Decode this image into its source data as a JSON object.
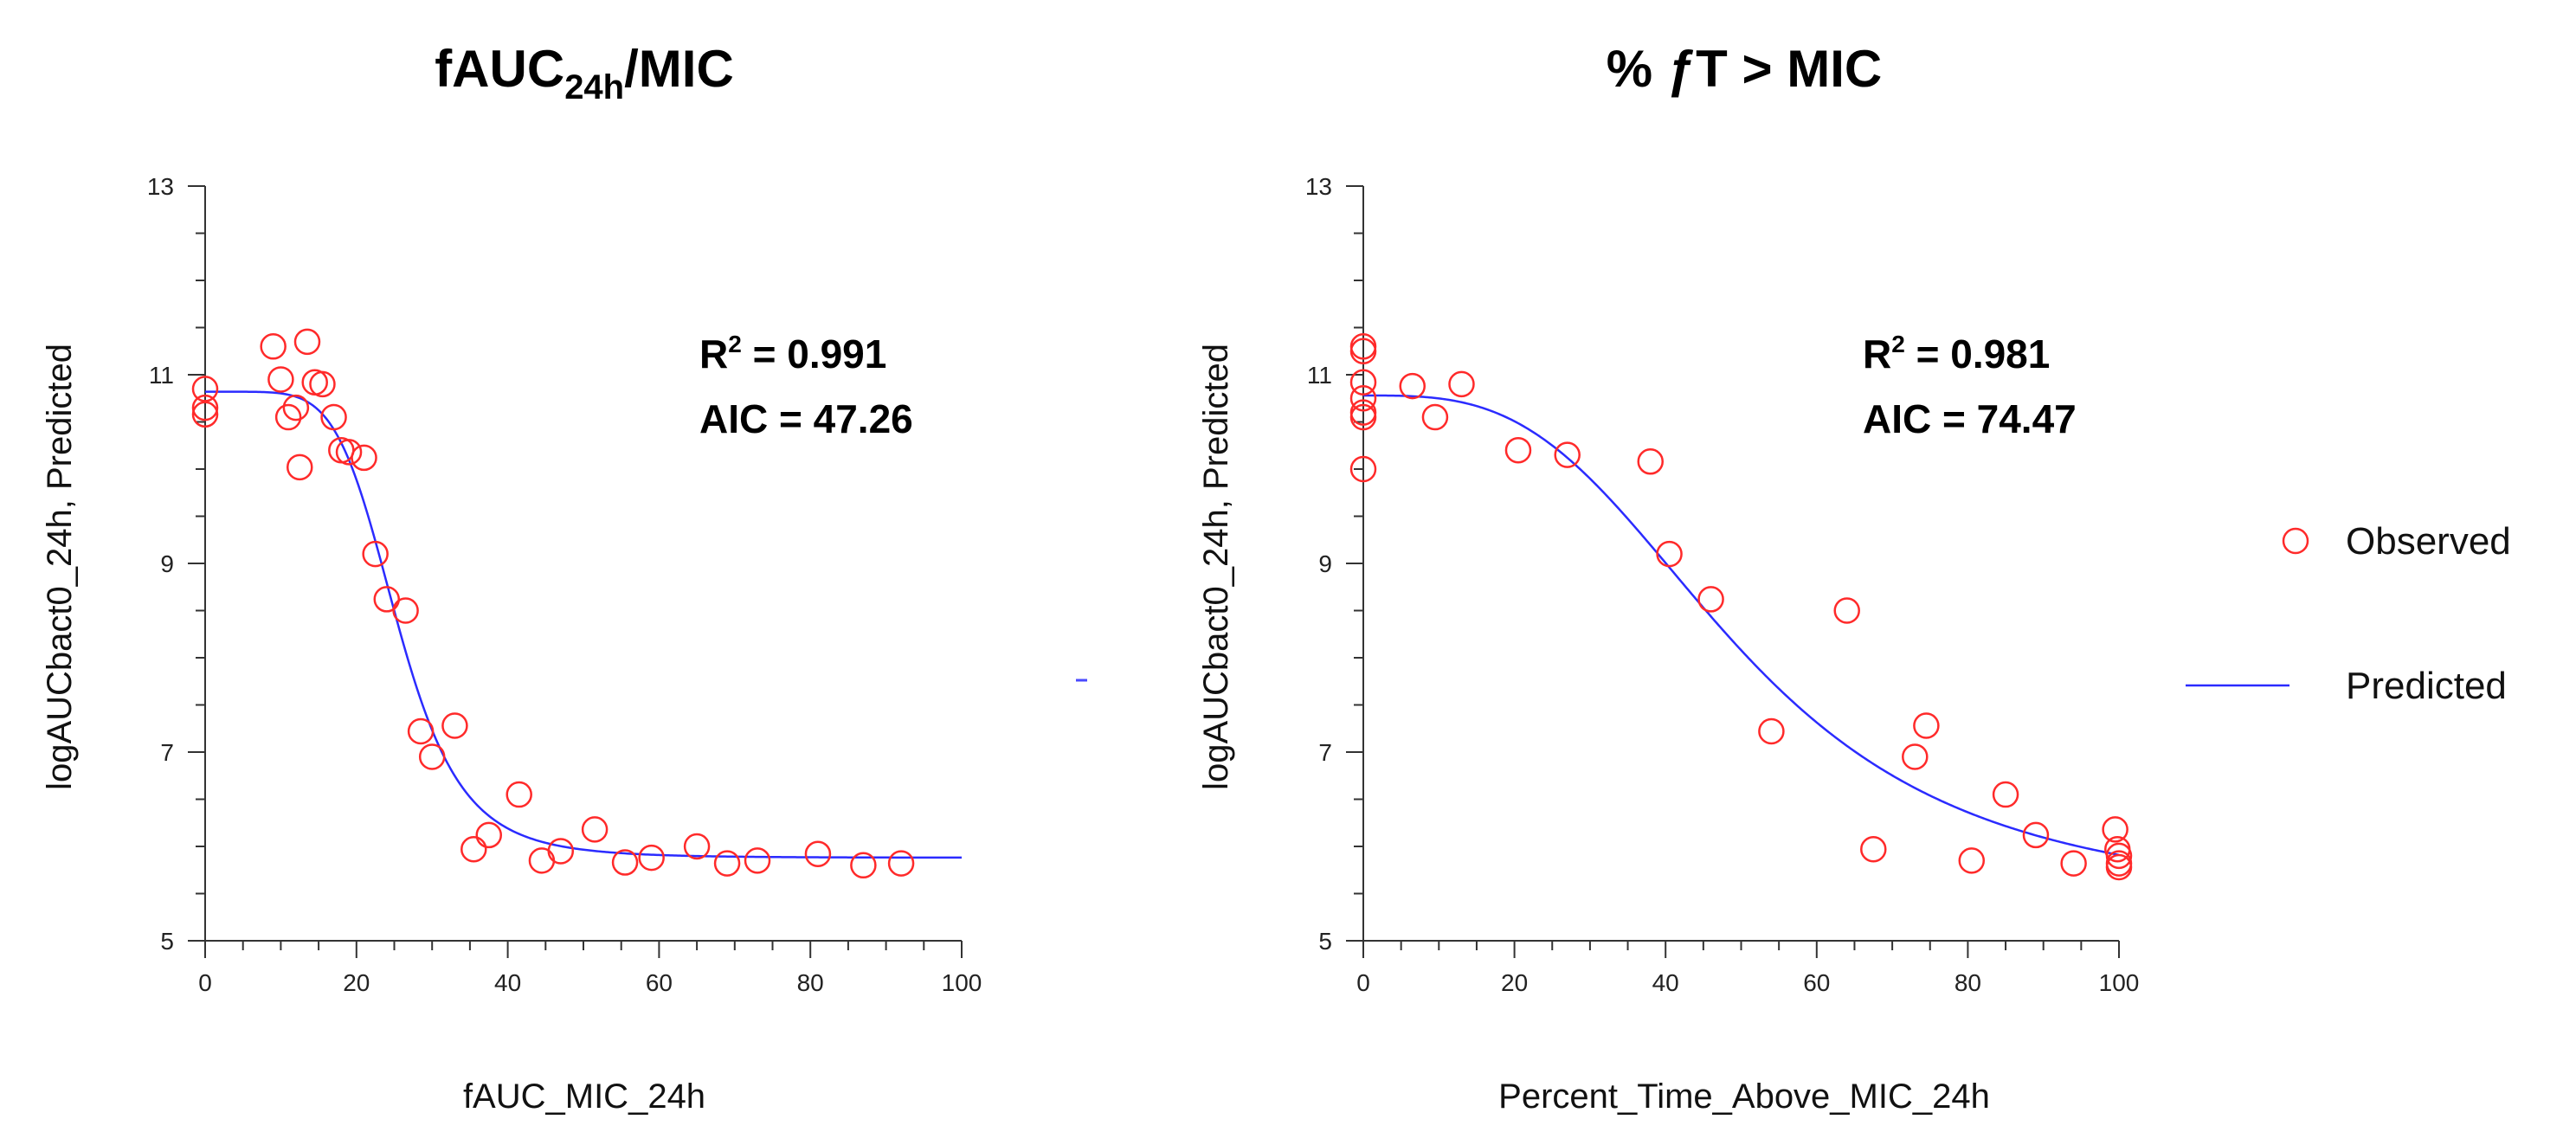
{
  "chart_data": [
    {
      "type": "scatter",
      "title_main": "fAUC",
      "title_sub": "24h",
      "title_tail": "/MIC",
      "xlabel": "fAUC_MIC_24h",
      "ylabel": "logAUCbact0_24h, Predicted",
      "xlim": [
        0,
        100
      ],
      "ylim": [
        5,
        13
      ],
      "xticks": [
        0,
        20,
        40,
        60,
        80,
        100
      ],
      "yticks": [
        5,
        7,
        9,
        11,
        13
      ],
      "grid": false,
      "r2_label": "R",
      "r2_sup": "2",
      "r2_value": " = 0.991",
      "aic_text": "AIC = 47.26",
      "series": [
        {
          "name": "Observed",
          "points": [
            [
              0,
              10.85
            ],
            [
              0,
              10.65
            ],
            [
              0,
              10.58
            ],
            [
              9,
              11.3
            ],
            [
              10,
              10.95
            ],
            [
              11,
              10.55
            ],
            [
              12,
              10.65
            ],
            [
              12.5,
              10.02
            ],
            [
              13.5,
              11.35
            ],
            [
              14.5,
              10.92
            ],
            [
              15.5,
              10.9
            ],
            [
              17,
              10.55
            ],
            [
              18,
              10.2
            ],
            [
              19,
              10.18
            ],
            [
              21,
              10.12
            ],
            [
              22.5,
              9.1
            ],
            [
              24,
              8.62
            ],
            [
              26.5,
              8.5
            ],
            [
              28.5,
              7.22
            ],
            [
              30,
              6.95
            ],
            [
              33,
              7.28
            ],
            [
              35.5,
              5.97
            ],
            [
              37.5,
              6.12
            ],
            [
              41.5,
              6.55
            ],
            [
              44.5,
              5.85
            ],
            [
              47,
              5.95
            ],
            [
              51.5,
              6.18
            ],
            [
              55.5,
              5.83
            ],
            [
              59,
              5.88
            ],
            [
              65,
              6.0
            ],
            [
              69,
              5.82
            ],
            [
              73,
              5.85
            ],
            [
              81,
              5.92
            ],
            [
              87,
              5.8
            ],
            [
              92,
              5.82
            ]
          ]
        },
        {
          "name": "Predicted",
          "e0": 10.82,
          "emin": 5.88,
          "ec50": 25.5,
          "hill": 6
        }
      ]
    },
    {
      "type": "scatter",
      "title_text": "% ƒT > MIC",
      "xlabel": "Percent_Time_Above_MIC_24h",
      "ylabel": "logAUCbact0_24h, Predicted",
      "xlim": [
        0,
        100
      ],
      "ylim": [
        5,
        13
      ],
      "xticks": [
        0,
        20,
        40,
        60,
        80,
        100
      ],
      "yticks": [
        5,
        7,
        9,
        11,
        13
      ],
      "grid": false,
      "r2_label": "R",
      "r2_sup": "2",
      "r2_value": " = 0.981",
      "aic_text": "AIC = 74.47",
      "series": [
        {
          "name": "Observed",
          "points": [
            [
              0,
              11.3
            ],
            [
              0,
              11.25
            ],
            [
              0,
              10.92
            ],
            [
              0,
              10.75
            ],
            [
              0,
              10.6
            ],
            [
              0,
              10.55
            ],
            [
              0,
              10.0
            ],
            [
              6.5,
              10.88
            ],
            [
              9.5,
              10.55
            ],
            [
              13,
              10.9
            ],
            [
              20.5,
              10.2
            ],
            [
              27,
              10.15
            ],
            [
              38,
              10.08
            ],
            [
              40.5,
              9.1
            ],
            [
              46,
              8.62
            ],
            [
              54,
              7.22
            ],
            [
              64,
              8.5
            ],
            [
              67.5,
              5.97
            ],
            [
              73,
              6.95
            ],
            [
              74.5,
              7.28
            ],
            [
              80.5,
              5.85
            ],
            [
              85,
              6.55
            ],
            [
              89,
              6.12
            ],
            [
              94,
              5.82
            ],
            [
              99.5,
              6.18
            ],
            [
              99.8,
              5.97
            ],
            [
              100,
              5.9
            ],
            [
              100,
              5.82
            ],
            [
              100,
              5.78
            ]
          ]
        },
        {
          "name": "Predicted",
          "e0": 10.78,
          "emin": 5.38,
          "ec50": 50,
          "hill": 3.2
        }
      ]
    }
  ],
  "legend": {
    "placement": "right",
    "items": [
      {
        "label": "Observed",
        "marker": "circle",
        "color": "#ff2a2a"
      },
      {
        "label": "Predicted",
        "marker": "line",
        "color": "#2b2bff"
      }
    ]
  },
  "colors": {
    "observed": "#ff2a2a",
    "predicted": "#2b2bff"
  }
}
